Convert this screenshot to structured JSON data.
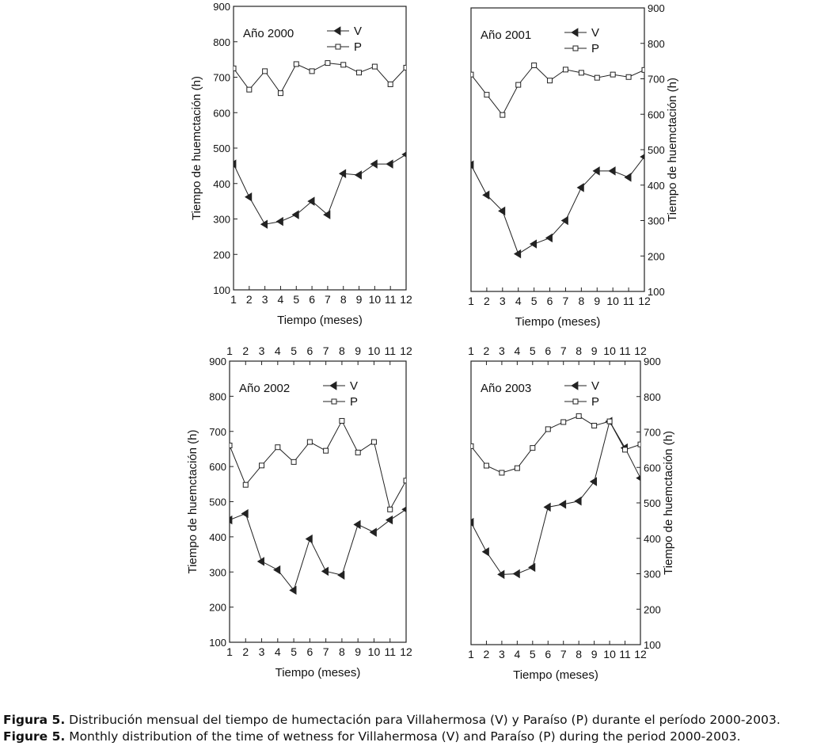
{
  "chart_data": [
    {
      "type": "line",
      "title": "Año 2000",
      "xlabel": "Tiempo (meses)",
      "ylabel": "Tiempo de huemctación (h)",
      "x": [
        1,
        2,
        3,
        4,
        5,
        6,
        7,
        8,
        9,
        10,
        11,
        12
      ],
      "xlim": [
        1,
        12
      ],
      "ylim": [
        100,
        900
      ],
      "yticks": [
        100,
        200,
        300,
        400,
        500,
        600,
        700,
        800,
        900
      ],
      "series": [
        {
          "name": "V",
          "marker": "left-triangle-filled",
          "values": [
            455,
            362,
            285,
            293,
            312,
            350,
            312,
            428,
            424,
            455,
            455,
            482
          ]
        },
        {
          "name": "P",
          "marker": "square-open",
          "values": [
            725,
            665,
            717,
            655,
            737,
            717,
            740,
            735,
            713,
            730,
            680,
            727
          ]
        }
      ]
    },
    {
      "type": "line",
      "title": "Año 2001",
      "xlabel": "Tiempo (meses)",
      "ylabel": "Tiempo de huemctación (h)",
      "x": [
        1,
        2,
        3,
        4,
        5,
        6,
        7,
        8,
        9,
        10,
        11,
        12
      ],
      "xlim": [
        1,
        12
      ],
      "ylim": [
        100,
        900
      ],
      "yticks": [
        100,
        200,
        300,
        400,
        500,
        600,
        700,
        800,
        900
      ],
      "series": [
        {
          "name": "V",
          "marker": "left-triangle-filled",
          "values": [
            457,
            372,
            327,
            206,
            234,
            251,
            300,
            393,
            440,
            440,
            422,
            480
          ]
        },
        {
          "name": "P",
          "marker": "square-open",
          "values": [
            712,
            655,
            598,
            683,
            738,
            695,
            726,
            717,
            703,
            712,
            705,
            725
          ]
        }
      ]
    },
    {
      "type": "line",
      "title": "Año 2002",
      "xlabel": "Tiempo (meses)",
      "ylabel": "Tiempo de huemctación (h)",
      "x": [
        1,
        2,
        3,
        4,
        5,
        6,
        7,
        8,
        9,
        10,
        11,
        12
      ],
      "xlim": [
        1,
        12
      ],
      "ylim": [
        100,
        900
      ],
      "yticks": [
        100,
        200,
        300,
        400,
        500,
        600,
        700,
        800,
        900
      ],
      "series": [
        {
          "name": "V",
          "marker": "left-triangle-filled",
          "values": [
            448,
            466,
            330,
            306,
            248,
            394,
            302,
            291,
            435,
            413,
            448,
            478
          ]
        },
        {
          "name": "P",
          "marker": "square-open",
          "values": [
            660,
            548,
            603,
            655,
            613,
            670,
            645,
            730,
            640,
            670,
            478,
            560
          ]
        }
      ]
    },
    {
      "type": "line",
      "title": "Año 2003",
      "xlabel": "Tiempo (meses)",
      "ylabel": "Tiempo de huemctación (h)",
      "x": [
        1,
        2,
        3,
        4,
        5,
        6,
        7,
        8,
        9,
        10,
        11,
        12
      ],
      "xlim": [
        1,
        12
      ],
      "ylim": [
        100,
        900
      ],
      "yticks": [
        100,
        200,
        300,
        400,
        500,
        600,
        700,
        800,
        900
      ],
      "series": [
        {
          "name": "V",
          "marker": "left-triangle-filled",
          "values": [
            445,
            362,
            298,
            300,
            318,
            488,
            496,
            505,
            560,
            730,
            655,
            570
          ]
        },
        {
          "name": "P",
          "marker": "square-open",
          "values": [
            660,
            605,
            585,
            598,
            655,
            708,
            728,
            745,
            718,
            730,
            650,
            665
          ]
        }
      ]
    }
  ],
  "caption": {
    "es_label": "Figura 5.",
    "es_text": "Distribución mensual del tiempo de humectación para Villahermosa (V) y Paraíso (P) durante el período 2000-2003.",
    "en_label": "Figure 5.",
    "en_text": "Monthly distribution of the time of wetness for Villahermosa (V) and Paraíso (P) during the period 2000-2003."
  }
}
